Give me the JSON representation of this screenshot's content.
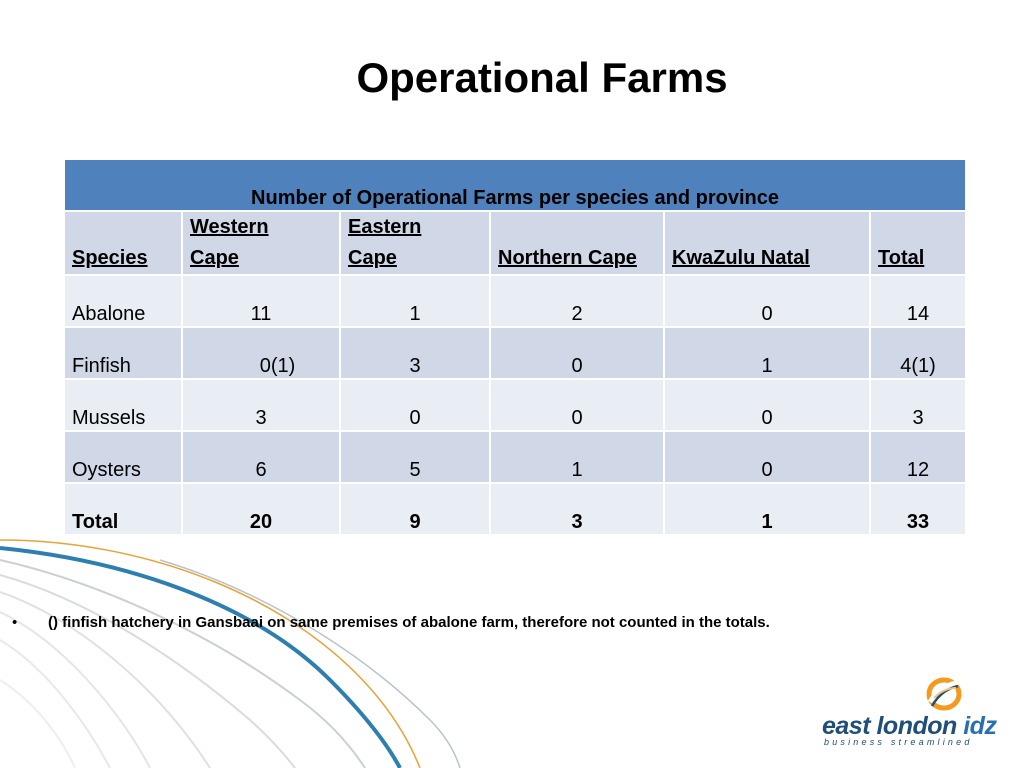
{
  "title": "Operational Farms",
  "table": {
    "caption": "Number of Operational  Farms per species and province",
    "headers": [
      "Species",
      "Western Cape",
      "Eastern Cape",
      "Northern Cape",
      "KwaZulu Natal",
      "Total"
    ],
    "rows": [
      [
        "Abalone",
        "11",
        "1",
        "2",
        "0",
        "14"
      ],
      [
        "Finfish",
        "0(1)",
        "3",
        "0",
        "1",
        "4(1)"
      ],
      [
        "Mussels",
        "3",
        "0",
        "0",
        "0",
        "3"
      ],
      [
        "Oysters",
        "6",
        "5",
        "1",
        "0",
        "12"
      ]
    ],
    "total_row": [
      "Total",
      "20",
      "9",
      "3",
      "1",
      "33"
    ]
  },
  "note": {
    "bullet": "•",
    "text": "() finfish hatchery in Gansbaai on same premises of abalone farm, therefore not counted in the totals."
  },
  "logo": {
    "name_main": "east london ",
    "name_accent": "idz",
    "tagline": "business streamlined",
    "colors": {
      "primary": "#1f4e79",
      "accent": "#f39a1f"
    }
  },
  "colors": {
    "header_blue": "#4f81bd",
    "band_dark": "#d0d8e8",
    "band_light": "#e9edf4"
  }
}
